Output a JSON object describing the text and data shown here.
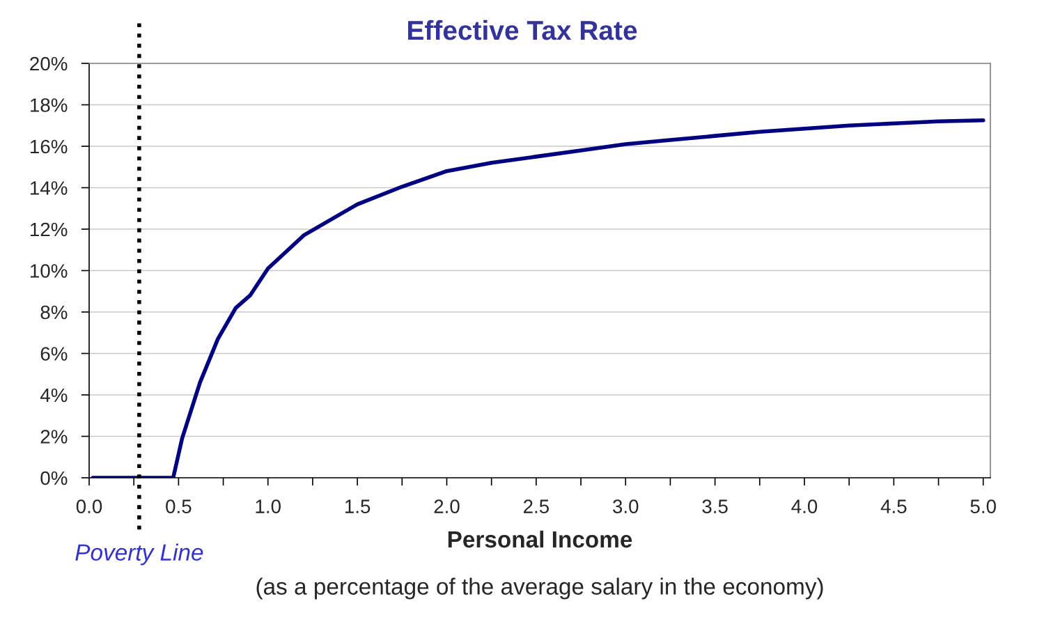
{
  "chart_data": {
    "type": "line",
    "title": "Effective Tax Rate",
    "xlabel": "Personal Income",
    "annotations": [
      "(as a percentage of the average salary in the economy)"
    ],
    "x": [
      0.02,
      0.47,
      0.52,
      0.62,
      0.72,
      0.82,
      0.9,
      1.0,
      1.2,
      1.5,
      1.75,
      2.0,
      2.25,
      2.5,
      2.75,
      3.0,
      3.25,
      3.5,
      3.75,
      4.0,
      4.25,
      4.5,
      4.75,
      5.0
    ],
    "series": [
      {
        "color": "#000080",
        "values": [
          0,
          0,
          1.9,
          4.6,
          6.7,
          8.2,
          8.8,
          10.1,
          11.7,
          13.2,
          14.05,
          14.8,
          15.2,
          15.5,
          15.8,
          16.1,
          16.3,
          16.5,
          16.7,
          16.85,
          17.0,
          17.1,
          17.2,
          17.25
        ]
      }
    ],
    "xlim": [
      0,
      5.04
    ],
    "xticks": [
      {
        "value": 0.0,
        "label": "0.0"
      },
      {
        "value": 0.25,
        "label": null
      },
      {
        "value": 0.5,
        "label": "0.5"
      },
      {
        "value": 0.75,
        "label": null
      },
      {
        "value": 1.0,
        "label": "1.0"
      },
      {
        "value": 1.25,
        "label": null
      },
      {
        "value": 1.5,
        "label": "1.5"
      },
      {
        "value": 1.75,
        "label": null
      },
      {
        "value": 2.0,
        "label": "2.0"
      },
      {
        "value": 2.25,
        "label": null
      },
      {
        "value": 2.5,
        "label": "2.5"
      },
      {
        "value": 2.75,
        "label": null
      },
      {
        "value": 3.0,
        "label": "3.0"
      },
      {
        "value": 3.25,
        "label": null
      },
      {
        "value": 3.5,
        "label": "3.5"
      },
      {
        "value": 3.75,
        "label": null
      },
      {
        "value": 4.0,
        "label": "4.0"
      },
      {
        "value": 4.25,
        "label": null
      },
      {
        "value": 4.5,
        "label": "4.5"
      },
      {
        "value": 4.75,
        "label": null
      },
      {
        "value": 5.0,
        "label": "5.0"
      }
    ],
    "ylim": [
      0,
      20
    ],
    "yticks": [
      {
        "value": 0,
        "label": "0%"
      },
      {
        "value": 2,
        "label": "2%"
      },
      {
        "value": 4,
        "label": "4%"
      },
      {
        "value": 6,
        "label": "6%"
      },
      {
        "value": 8,
        "label": "8%"
      },
      {
        "value": 10,
        "label": "10%"
      },
      {
        "value": 12,
        "label": "12%"
      },
      {
        "value": 14,
        "label": "14%"
      },
      {
        "value": 16,
        "label": "16%"
      },
      {
        "value": 18,
        "label": "18%"
      },
      {
        "value": 20,
        "label": "20%"
      }
    ],
    "ref_lines": [
      {
        "axis": "x",
        "value": 0.28,
        "label": "Poverty Line",
        "color": "#000000",
        "line_style": "dotted"
      }
    ],
    "grid": "y",
    "marker": "none",
    "line_style": "solid"
  }
}
